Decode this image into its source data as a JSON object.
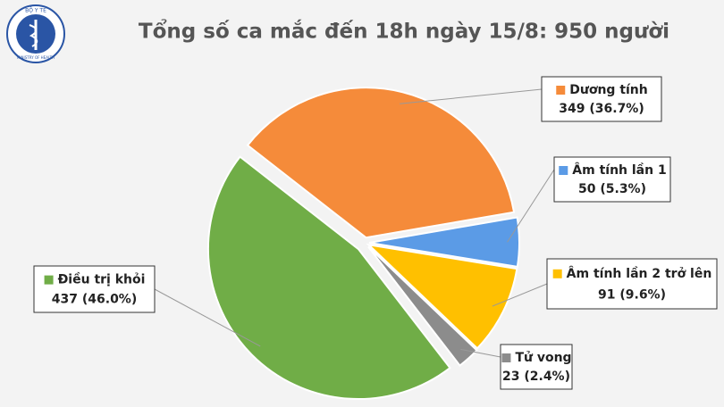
{
  "logo": {
    "top": "BỘ Y TẾ",
    "bottom": "MINISTRY OF HEALTH"
  },
  "chart_data": {
    "type": "pie",
    "title": "Tổng số ca mắc đến 18h ngày 15/8: 950 người",
    "categories": [
      "Dương tính",
      "Âm tính lần 1",
      "Âm tính lần 2 trở lên",
      "Tử vong",
      "Điều trị khỏi"
    ],
    "values": [
      349,
      50,
      91,
      23,
      437
    ],
    "value_labels": [
      "349 (36.7%)",
      "50 (5.3%)",
      "91 (9.6%)",
      "23 (2.4%)",
      "437 (46.0%)"
    ],
    "colors": [
      "#f58b3a",
      "#5b9be6",
      "#ffc000",
      "#8c8c8c",
      "#70ad47"
    ]
  }
}
